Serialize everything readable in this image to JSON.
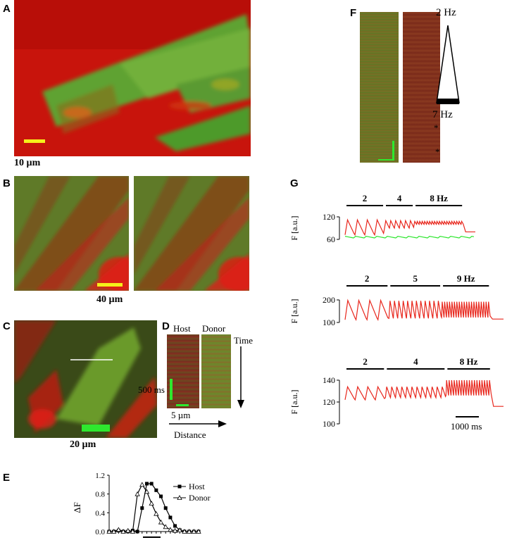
{
  "panels": {
    "A": {
      "label": "A",
      "scale": "10 µm",
      "colors": {
        "bg": "#c8140c",
        "cells": "#4c9a2a",
        "bar": "#f5ef1a"
      }
    },
    "B": {
      "label": "B",
      "scale": "40 µm",
      "colors": {
        "bar": "#f5ef1a"
      }
    },
    "C": {
      "label": "C",
      "scale": "20 µm",
      "colors": {
        "bar": "#2ee82e"
      }
    },
    "D": {
      "label": "D",
      "host": "Host",
      "donor": "Donor",
      "time": "Time",
      "ms": "500 ms",
      "um": "5 µm",
      "distance": "Distance"
    },
    "E": {
      "label": "E",
      "ylabel": "ΔF",
      "legend": [
        "Host",
        "Donor"
      ],
      "yticks": [
        "0.0",
        "0.4",
        "0.8",
        "1.2"
      ]
    },
    "F": {
      "label": "F",
      "top": "2 Hz",
      "bottom": "7 Hz",
      "stars": [
        "*",
        "*"
      ]
    },
    "G": {
      "label": "G",
      "ylabel": "F [a.u.]",
      "timebar": "1000 ms"
    }
  },
  "chart_data": [
    {
      "type": "line",
      "panel": "E",
      "ylabel": "ΔF",
      "ylim": [
        0,
        1.2
      ],
      "yticks": [
        0.0,
        0.4,
        0.8,
        1.2
      ],
      "legend_placement": "top-right",
      "x": [
        0,
        1,
        2,
        3,
        4,
        5,
        6,
        7,
        8,
        9,
        10,
        11,
        12,
        13,
        14,
        15,
        16,
        17,
        18,
        19
      ],
      "series": [
        {
          "name": "Host",
          "marker": "filled-square",
          "values": [
            0.0,
            0.0,
            0.02,
            0.0,
            0.0,
            0.02,
            0.0,
            0.5,
            1.02,
            1.02,
            0.88,
            0.75,
            0.5,
            0.3,
            0.12,
            0.03,
            0.0,
            0.0,
            0.0,
            0.0
          ]
        },
        {
          "name": "Donor",
          "marker": "open-triangle",
          "values": [
            0.0,
            0.0,
            0.04,
            0.0,
            0.02,
            0.0,
            0.8,
            1.0,
            0.85,
            0.6,
            0.38,
            0.2,
            0.1,
            0.04,
            0.02,
            0.03,
            0.0,
            0.0,
            0.0,
            0.0
          ]
        }
      ]
    },
    {
      "type": "line",
      "panel": "G1",
      "ylabel": "F [a.u.]",
      "ylim": [
        60,
        120
      ],
      "yticks": [
        60,
        120
      ],
      "stimulation": [
        {
          "label": "2",
          "unit": ""
        },
        {
          "label": "4",
          "unit": ""
        },
        {
          "label": "8",
          "unit": "Hz"
        }
      ],
      "series": [
        {
          "name": "",
          "color": "#e8261c",
          "segments": [
            {
              "freq": 2,
              "beats": 4,
              "base": 72,
              "peak": 112
            },
            {
              "freq": 4,
              "beats": 6,
              "base": 90,
              "peak": 110
            },
            {
              "freq": 8,
              "beats": 20,
              "base": 100,
              "peak": 108
            }
          ],
          "tail": 80
        },
        {
          "name": "",
          "color": "#2de62d",
          "flat": 66
        }
      ]
    },
    {
      "type": "line",
      "panel": "G2",
      "ylabel": "F [a.u.]",
      "ylim": [
        100,
        200
      ],
      "yticks": [
        100,
        200
      ],
      "stimulation": [
        {
          "label": "2",
          "unit": ""
        },
        {
          "label": "5",
          "unit": ""
        },
        {
          "label": "9",
          "unit": "Hz"
        }
      ],
      "series": [
        {
          "name": "",
          "color": "#e8261c",
          "segments": [
            {
              "freq": 2,
              "beats": 4,
              "base": 112,
              "peak": 198
            },
            {
              "freq": 5,
              "beats": 12,
              "base": 118,
              "peak": 196
            },
            {
              "freq": 9,
              "beats": 20,
              "base": 122,
              "peak": 192
            }
          ],
          "tail": 115
        }
      ]
    },
    {
      "type": "line",
      "panel": "G3",
      "ylabel": "F [a.u.]",
      "ylim": [
        100,
        140
      ],
      "yticks": [
        100,
        120,
        140
      ],
      "stimulation": [
        {
          "label": "2",
          "unit": ""
        },
        {
          "label": "4",
          "unit": ""
        },
        {
          "label": "8",
          "unit": "Hz"
        }
      ],
      "series": [
        {
          "name": "",
          "color": "#e8261c",
          "segments": [
            {
              "freq": 2,
              "beats": 4,
              "base": 122,
              "peak": 134
            },
            {
              "freq": 4,
              "beats": 12,
              "base": 124,
              "peak": 134
            },
            {
              "freq": 8,
              "beats": 18,
              "base": 126,
              "peak": 140
            }
          ],
          "tail": 116
        }
      ]
    }
  ]
}
